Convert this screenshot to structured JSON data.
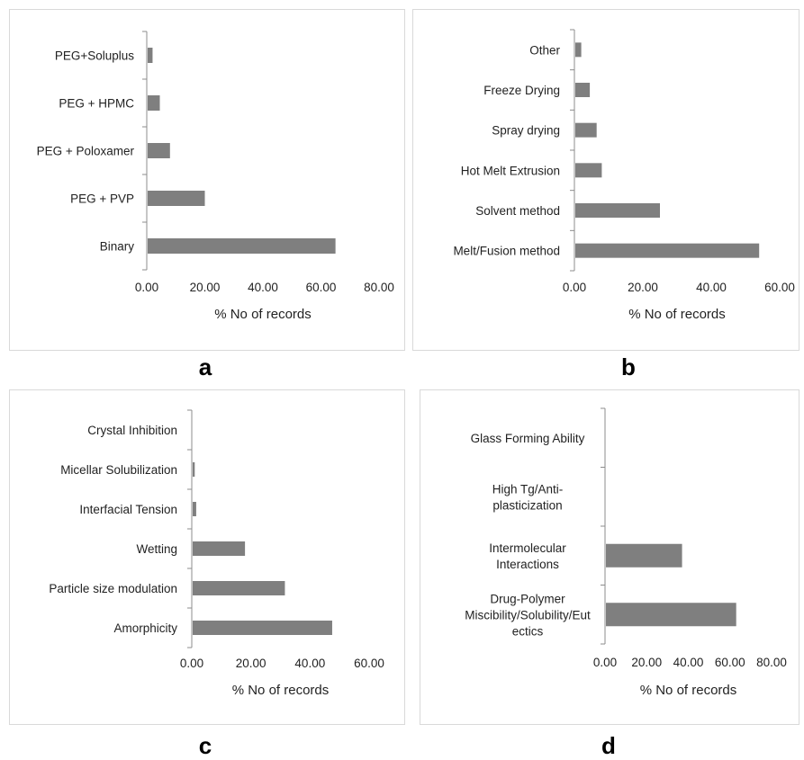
{
  "chart_data": [
    {
      "panel": "a",
      "type": "bar",
      "orientation": "horizontal",
      "categories": [
        "PEG+Soluplus",
        "PEG + HPMC",
        "PEG + Poloxamer",
        "PEG + PVP",
        "Binary"
      ],
      "category_lines": [
        [
          "PEG+Soluplus"
        ],
        [
          "PEG + HPMC"
        ],
        [
          "PEG + Poloxamer"
        ],
        [
          "PEG + PVP"
        ],
        [
          "Binary"
        ]
      ],
      "values": [
        2,
        4.5,
        8,
        20,
        65
      ],
      "xlabel": "% No of records",
      "xlim": [
        0,
        80
      ],
      "xticks": [
        "0.00",
        "20.00",
        "40.00",
        "60.00",
        "80.00"
      ],
      "bar_color": "#7f7f7f",
      "grid": false
    },
    {
      "panel": "b",
      "type": "bar",
      "orientation": "horizontal",
      "categories": [
        "Other",
        "Freeze Drying",
        "Spray drying",
        "Hot Melt Extrusion",
        "Solvent method",
        "Melt/Fusion method"
      ],
      "category_lines": [
        [
          "Other"
        ],
        [
          "Freeze Drying"
        ],
        [
          "Spray drying"
        ],
        [
          "Hot Melt Extrusion"
        ],
        [
          "Solvent method"
        ],
        [
          "Melt/Fusion method"
        ]
      ],
      "values": [
        2,
        4.5,
        6.5,
        8,
        25,
        54
      ],
      "xlabel": "% No of records",
      "xlim": [
        0,
        60
      ],
      "xticks": [
        "0.00",
        "20.00",
        "40.00",
        "60.00"
      ],
      "bar_color": "#7f7f7f",
      "grid": false
    },
    {
      "panel": "c",
      "type": "bar",
      "orientation": "horizontal",
      "categories": [
        "Crystal Inhibition",
        "Micellar Solubilization",
        "Interfacial Tension",
        "Wetting",
        "Particle size modulation",
        "Amorphicity"
      ],
      "category_lines": [
        [
          "Crystal Inhibition"
        ],
        [
          "Micellar Solubilization"
        ],
        [
          "Interfacial Tension"
        ],
        [
          "Wetting"
        ],
        [
          "Particle size modulation"
        ],
        [
          "Amorphicity"
        ]
      ],
      "values": [
        0,
        1,
        1.5,
        18,
        31.5,
        47.5
      ],
      "xlabel": "% No of records",
      "xlim": [
        0,
        60
      ],
      "xticks": [
        "0.00",
        "20.00",
        "40.00",
        "60.00"
      ],
      "bar_color": "#7f7f7f",
      "grid": false
    },
    {
      "panel": "d",
      "type": "bar",
      "orientation": "horizontal",
      "categories": [
        "Glass Forming Ability",
        "High Tg/Anti-plasticization",
        "Intermolecular Interactions",
        "Drug-Polymer Miscibility/Solubility/Eutectics"
      ],
      "category_lines": [
        [
          "Glass Forming Ability"
        ],
        [
          "High Tg/Anti-",
          "plasticization"
        ],
        [
          "Intermolecular",
          "Interactions"
        ],
        [
          "Drug-Polymer",
          "Miscibility/Solubility/Eut",
          "ectics"
        ]
      ],
      "values": [
        0,
        0,
        37,
        63
      ],
      "xlabel": "% No of records",
      "xlim": [
        0,
        80
      ],
      "xticks": [
        "0.00",
        "20.00",
        "40.00",
        "60.00",
        "80.00"
      ],
      "bar_color": "#7f7f7f",
      "grid": false
    }
  ]
}
